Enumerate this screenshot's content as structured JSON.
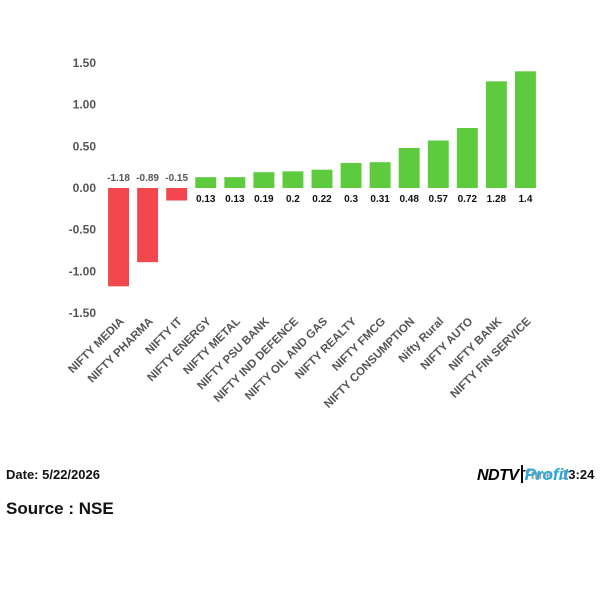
{
  "chart_data": {
    "type": "bar",
    "categories": [
      "NIFTY MEDIA",
      "NIFTY PHARMA",
      "NIFTY IT",
      "NIFTY ENERGY",
      "NIFTY METAL",
      "NIFTY PSU BANK",
      "NIFTY IND DEFENCE",
      "NIFTY OIL AND GAS",
      "NIFTY REALTY",
      "NIFTY FMCG",
      "NIFTY CONSUMPTION",
      "Nifty Rural",
      "NIFTY AUTO",
      "NIFTY BANK",
      "NIFTY FIN SERVICE"
    ],
    "values": [
      -1.18,
      -0.89,
      -0.15,
      0.13,
      0.13,
      0.19,
      0.2,
      0.22,
      0.3,
      0.31,
      0.48,
      0.57,
      0.72,
      1.28,
      1.4
    ],
    "value_labels": [
      "-1.18",
      "-0.89",
      "-0.15",
      "0.13",
      "0.13",
      "0.19",
      "0.2",
      "0.22",
      "0.3",
      "0.31",
      "0.48",
      "0.57",
      "0.72",
      "1.28",
      "1.4"
    ],
    "yticks": [
      "1.50",
      "1.00",
      "0.50",
      "0.00",
      "-0.50",
      "-1.00",
      "-1.50"
    ],
    "ylim": [
      -1.5,
      1.5
    ],
    "grid": false,
    "colors": {
      "positive": "#5ecb3f",
      "negative": "#f2484d",
      "negative_label": "#555555",
      "positive_label": "#111111"
    }
  },
  "footer": {
    "date": "Date: 5/22/2026",
    "source": "Source : NSE",
    "time": "Time: 13:24",
    "logo_ndtv": "NDTV",
    "logo_profit": "Profit"
  }
}
